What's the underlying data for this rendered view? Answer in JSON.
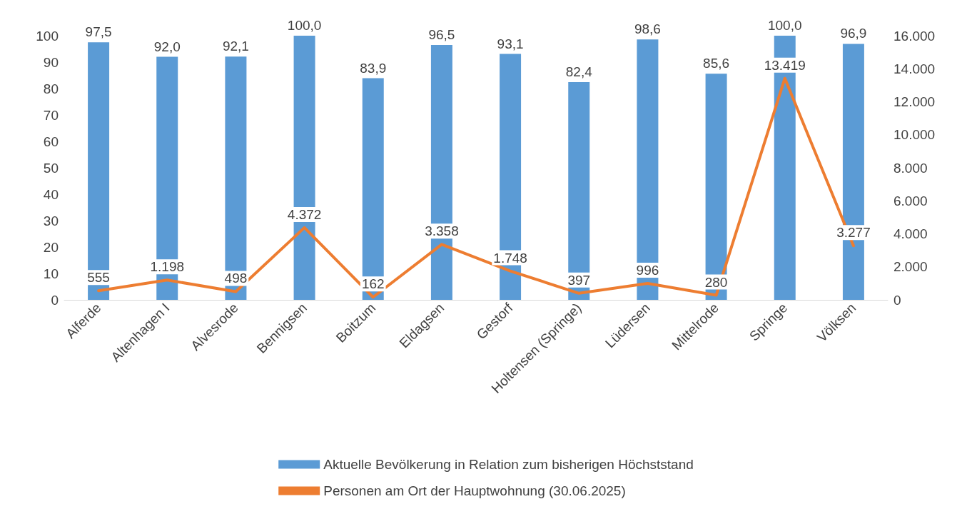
{
  "chart_data": {
    "type": "bar",
    "categories": [
      "Alferde",
      "Altenhagen I",
      "Alvesrode",
      "Bennigsen",
      "Boitzum",
      "Eldagsen",
      "Gestorf",
      "Holtensen (Springe)",
      "Lüdersen",
      "Mittelrode",
      "Springe",
      "Völksen"
    ],
    "series": [
      {
        "name": "Aktuelle Bevölkerung in Relation zum bisherigen Höchststand",
        "color": "#5b9bd5",
        "values": [
          97.5,
          92.0,
          92.1,
          100.0,
          83.9,
          96.5,
          93.1,
          82.4,
          98.6,
          85.6,
          100.0,
          96.9
        ],
        "value_labels": [
          "97,5",
          "92,0",
          "92,1",
          "100,0",
          "83,9",
          "96,5",
          "93,1",
          "82,4",
          "98,6",
          "85,6",
          "100,0",
          "96,9"
        ]
      },
      {
        "name": "Personen am Ort der Hauptwohnung (30.06.2025)",
        "type": "line",
        "axis": "y2",
        "color": "#ed7d31",
        "marker": "none",
        "values": [
          555,
          1198,
          498,
          4372,
          162,
          3358,
          1748,
          397,
          996,
          280,
          13419,
          3277
        ],
        "value_labels": [
          "555",
          "1.198",
          "498",
          "4.372",
          "162",
          "3.358",
          "1.748",
          "397",
          "996",
          "280",
          "13.419",
          "3.277"
        ]
      }
    ],
    "ylim": [
      0,
      100
    ],
    "yticks": [
      0,
      10,
      20,
      30,
      40,
      50,
      60,
      70,
      80,
      90,
      100
    ],
    "y2lim": [
      0,
      16000
    ],
    "y2ticks": [
      {
        "value": 0,
        "label": "0"
      },
      {
        "value": 2000,
        "label": "2.000"
      },
      {
        "value": 4000,
        "label": "4.000"
      },
      {
        "value": 6000,
        "label": "6.000"
      },
      {
        "value": 8000,
        "label": "8.000"
      },
      {
        "value": 10000,
        "label": "10.000"
      },
      {
        "value": 12000,
        "label": "12.000"
      },
      {
        "value": 14000,
        "label": "14.000"
      },
      {
        "value": 16000,
        "label": "16.000"
      }
    ],
    "grid": false,
    "legend": "bottom"
  }
}
